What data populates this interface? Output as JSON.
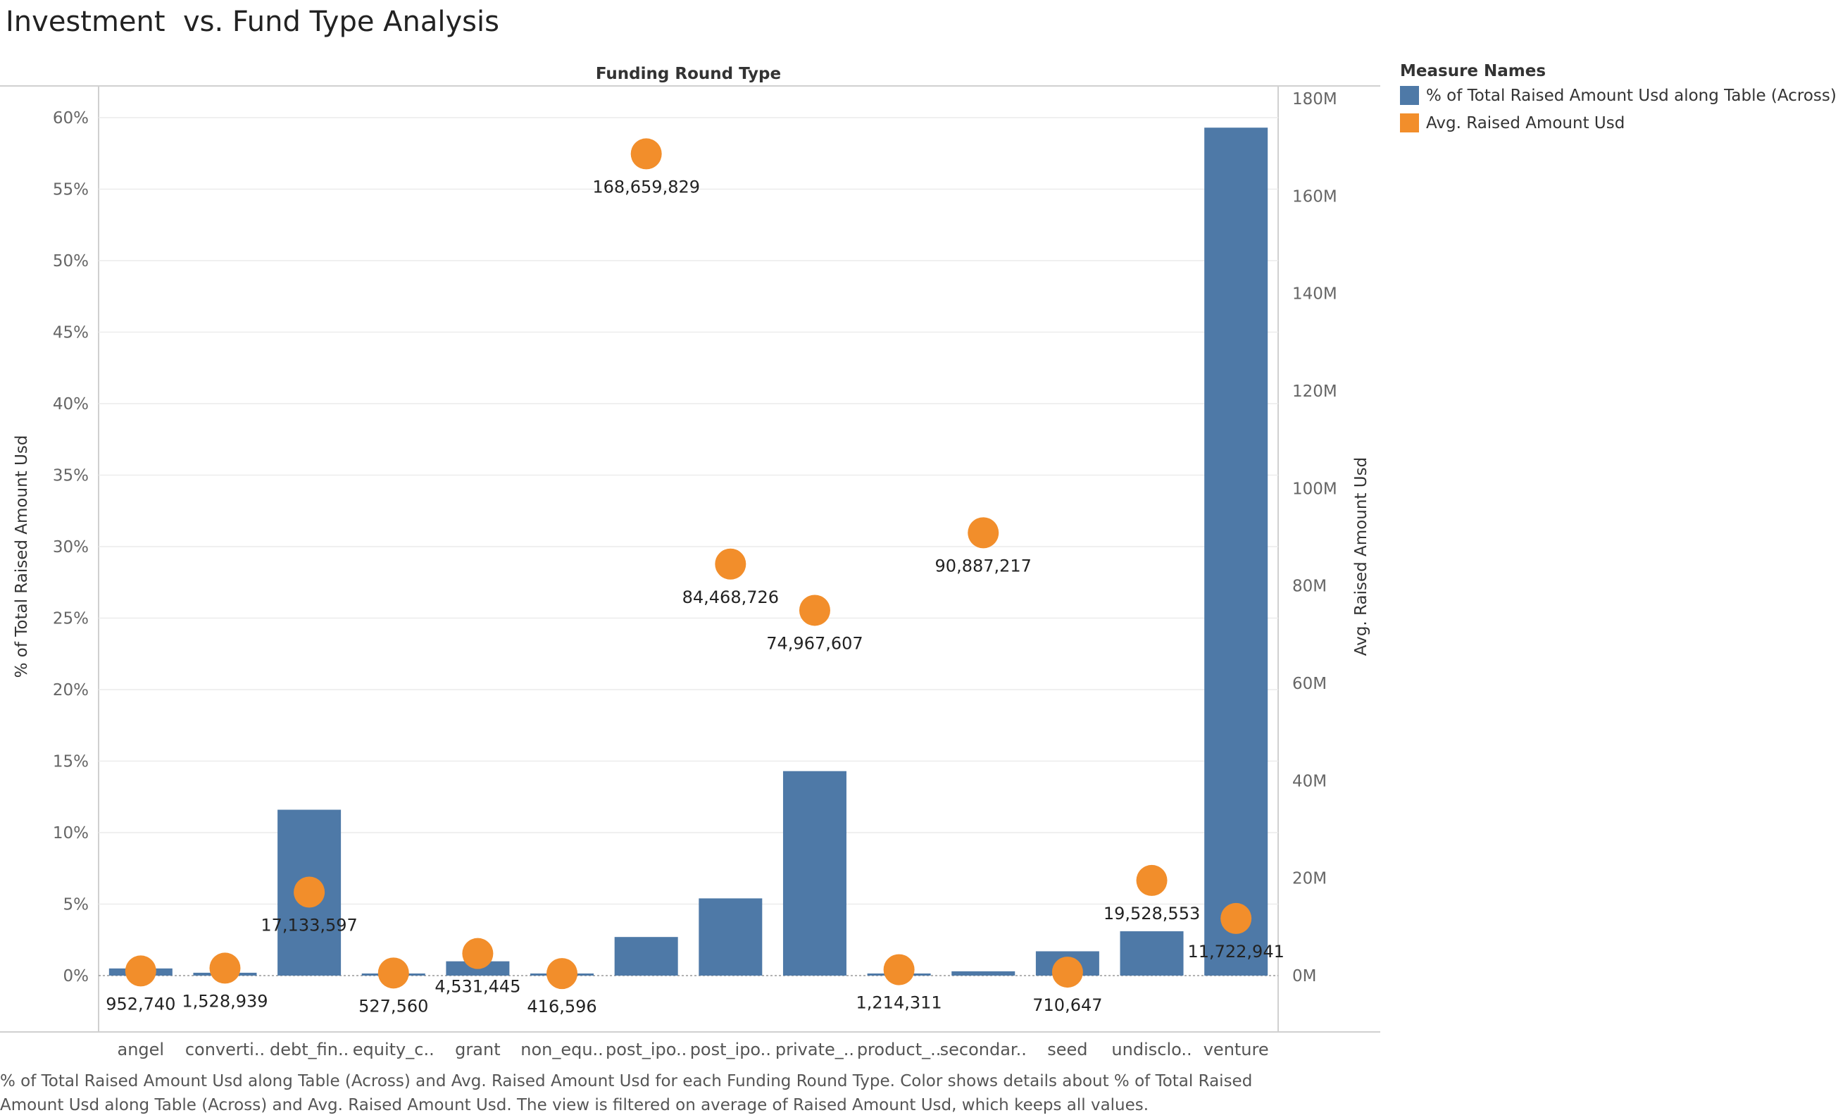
{
  "title": "Investment  vs. Fund Type Analysis",
  "legend": {
    "title": "Measure Names",
    "items": [
      {
        "label": "% of Total Raised Amount Usd along Table (Across)",
        "color": "#4e79a7"
      },
      {
        "label": "Avg. Raised Amount Usd",
        "color": "#f28e2b"
      }
    ]
  },
  "caption": "% of Total Raised Amount Usd along Table (Across) and Avg. Raised Amount Usd for each Funding Round Type.  Color shows details about % of Total Raised Amount Usd along Table (Across) and Avg. Raised Amount Usd. The view is filtered on average of Raised Amount Usd, which keeps all values.",
  "chart_data": {
    "type": "bar",
    "title": "Investment  vs. Fund Type Analysis",
    "xlabel": "Funding Round Type",
    "ylabel": "% of Total Raised Amount Usd",
    "y2label": "Avg. Raised Amount Usd",
    "ylim": [
      0,
      62
    ],
    "y2lim": [
      0,
      182000000
    ],
    "yticks": [
      "0%",
      "5%",
      "10%",
      "15%",
      "20%",
      "25%",
      "30%",
      "35%",
      "40%",
      "45%",
      "50%",
      "55%",
      "60%"
    ],
    "y2ticks": [
      "0M",
      "20M",
      "40M",
      "60M",
      "80M",
      "100M",
      "120M",
      "140M",
      "160M",
      "180M"
    ],
    "grid": true,
    "legend_position": "right",
    "categories": [
      "angel",
      "converti..",
      "debt_fin..",
      "equity_c..",
      "grant",
      "non_equ..",
      "post_ipo..",
      "post_ipo..",
      "private_..",
      "product_..",
      "secondar..",
      "seed",
      "undisclo..",
      "venture"
    ],
    "series": [
      {
        "name": "% of Total Raised Amount Usd along Table (Across)",
        "type": "bar",
        "axis": "left",
        "color": "#4e79a7",
        "values": [
          0.5,
          0.2,
          11.6,
          0.1,
          1.0,
          0.05,
          2.7,
          5.4,
          14.3,
          0.1,
          0.3,
          1.7,
          3.1,
          59.3
        ]
      },
      {
        "name": "Avg. Raised Amount Usd",
        "type": "scatter",
        "axis": "right",
        "color": "#f28e2b",
        "values": [
          952740,
          1528939,
          17133597,
          527560,
          4531445,
          416596,
          168659829,
          84468726,
          74967607,
          1214311,
          90887217,
          710647,
          19528553,
          11722941
        ],
        "labels": [
          "952,740",
          "1,528,939",
          "17,133,597",
          "527,560",
          "4,531,445",
          "416,596",
          "168,659,829",
          "84,468,726",
          "74,967,607",
          "1,214,311",
          "90,887,217",
          "710,647",
          "19,528,553",
          "11,722,941"
        ]
      }
    ]
  }
}
